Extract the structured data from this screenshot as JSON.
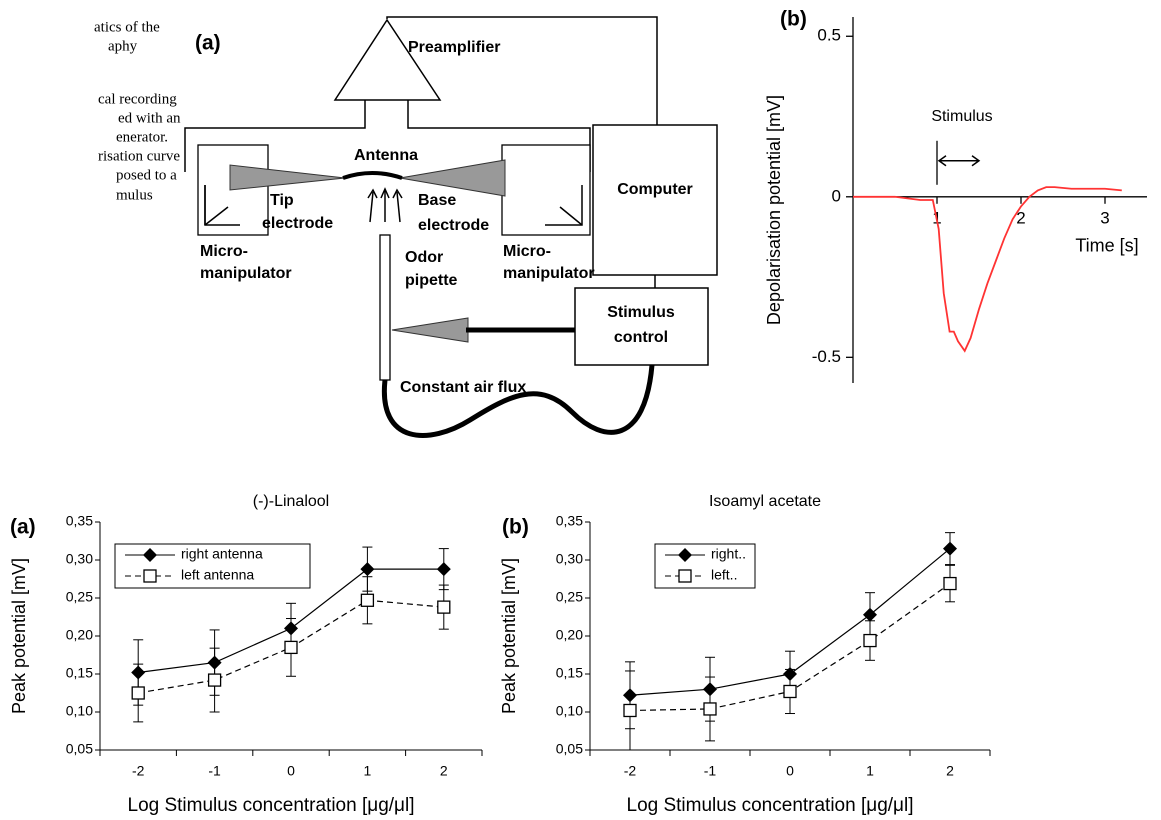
{
  "caption_lines": [
    "atics of the",
    "aphy",
    "cal recording",
    "ed with an",
    "enerator.",
    "risation curve",
    "posed to a",
    "mulus"
  ],
  "diagram": {
    "panel": "(a)",
    "labels": [
      "Preamplifier",
      "Antenna",
      "Tip",
      "electrode",
      "Base",
      "electrode",
      "Computer",
      "Micro-",
      "manipulator",
      "Micro-",
      "manipulator",
      "Odor",
      "pipette",
      "Stimulus",
      "control",
      "Constant air flux"
    ]
  },
  "chart_data": [
    {
      "type": "line",
      "panel": "(b)",
      "ylabel": "Depolarisation potential [mV]",
      "xlabel": "Time [s]",
      "color": "#ff3333",
      "x": [
        0,
        0.5,
        0.8,
        0.95,
        1.02,
        1.08,
        1.15,
        1.2,
        1.25,
        1.33,
        1.4,
        1.5,
        1.6,
        1.7,
        1.8,
        1.9,
        2.0,
        2.1,
        2.2,
        2.3,
        2.4,
        2.6,
        2.8,
        3.0,
        3.2
      ],
      "y": [
        0,
        0,
        -0.01,
        -0.01,
        -0.1,
        -0.3,
        -0.42,
        -0.42,
        -0.45,
        -0.48,
        -0.44,
        -0.35,
        -0.27,
        -0.2,
        -0.13,
        -0.07,
        -0.03,
        0,
        0.02,
        0.03,
        0.03,
        0.025,
        0.025,
        0.025,
        0.02
      ],
      "xlim": [
        0,
        3.5
      ],
      "ylim": [
        -0.58,
        0.56
      ],
      "xticks": [
        1,
        2,
        3
      ],
      "yticks": [
        0.5,
        0,
        -0.5
      ],
      "stimulus": {
        "label": "Stimulus",
        "start": 1,
        "end": 1.5
      }
    },
    {
      "type": "errorbar",
      "panel": "(a)",
      "title": "(-)-Linalool",
      "ylabel": "Peak potential [mV]",
      "xlabel": "Log Stimulus concentration [μg/μl]",
      "categories": [
        "-2",
        "-1",
        "0",
        "1",
        "2"
      ],
      "legend": "upper left",
      "series": [
        {
          "name": "right antenna",
          "color": "#000000",
          "marker": "diamond",
          "line_style": "solid",
          "values": [
            0.152,
            0.165,
            0.21,
            0.288,
            0.288
          ],
          "errors": [
            0.043,
            0.043,
            0.033,
            0.029,
            0.027
          ]
        },
        {
          "name": "left antenna",
          "color": "#000000",
          "marker": "open-square",
          "line_style": "dashed",
          "values": [
            0.125,
            0.142,
            0.185,
            0.247,
            0.238
          ],
          "errors": [
            0.038,
            0.042,
            0.038,
            0.031,
            0.029
          ]
        }
      ],
      "ylim": [
        0.05,
        0.35
      ],
      "yticks": [
        {
          "value": 0.05,
          "label": "0,05"
        },
        {
          "value": 0.1,
          "label": "0,10"
        },
        {
          "value": 0.15,
          "label": "0,15"
        },
        {
          "value": 0.2,
          "label": "0,20"
        },
        {
          "value": 0.25,
          "label": "0,25"
        },
        {
          "value": 0.3,
          "label": "0,30"
        },
        {
          "value": 0.35,
          "label": "0,35"
        }
      ]
    },
    {
      "type": "errorbar",
      "panel": "(b)",
      "title": "Isoamyl acetate",
      "ylabel": "Peak potential [mV]",
      "xlabel": "Log Stimulus concentration [μg/μl]",
      "categories": [
        "-2",
        "-1",
        "0",
        "1",
        "2"
      ],
      "legend": "upper left",
      "series": [
        {
          "name": "right..",
          "color": "#000000",
          "marker": "diamond",
          "line_style": "solid",
          "values": [
            0.122,
            0.13,
            0.15,
            0.228,
            0.315
          ],
          "errors": [
            0.044,
            0.042,
            0.03,
            0.029,
            0.021
          ]
        },
        {
          "name": "left..",
          "color": "#000000",
          "marker": "open-square",
          "line_style": "dashed",
          "values": [
            0.102,
            0.104,
            0.127,
            0.194,
            0.269
          ],
          "errors": [
            0.052,
            0.042,
            0.029,
            0.026,
            0.024
          ]
        }
      ],
      "ylim": [
        0.05,
        0.35
      ],
      "yticks": [
        {
          "value": 0.05,
          "label": "0,05"
        },
        {
          "value": 0.1,
          "label": "0,10"
        },
        {
          "value": 0.15,
          "label": "0,15"
        },
        {
          "value": 0.2,
          "label": "0,20"
        },
        {
          "value": 0.25,
          "label": "0,25"
        },
        {
          "value": 0.3,
          "label": "0,30"
        },
        {
          "value": 0.35,
          "label": "0,35"
        }
      ]
    }
  ]
}
